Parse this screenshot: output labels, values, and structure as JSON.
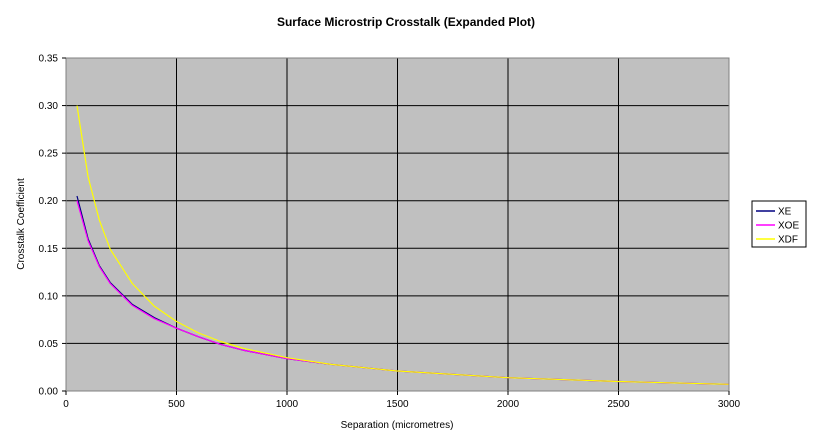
{
  "chart_data": {
    "type": "line",
    "title": "Surface Microstrip Crosstalk (Expanded Plot)",
    "xlabel": "Separation (micrometres)",
    "ylabel": "Crosstalk Coefficient",
    "xlim": [
      0,
      3000
    ],
    "ylim": [
      0,
      0.35
    ],
    "x_ticks": [
      0,
      500,
      1000,
      1500,
      2000,
      2500,
      3000
    ],
    "y_ticks": [
      "0.00",
      "0.05",
      "0.10",
      "0.15",
      "0.20",
      "0.25",
      "0.30",
      "0.35"
    ],
    "grid": true,
    "plot_background": "#c0c0c0",
    "legend_position": "right",
    "series": [
      {
        "name": "XE",
        "color": "#000080",
        "x": [
          50,
          100,
          150,
          200,
          300,
          400,
          500,
          600,
          700,
          800,
          1000,
          1200,
          1500,
          2000,
          2500,
          3000
        ],
        "values": [
          0.205,
          0.16,
          0.132,
          0.114,
          0.091,
          0.077,
          0.066,
          0.057,
          0.049,
          0.043,
          0.034,
          0.028,
          0.021,
          0.014,
          0.01,
          0.007
        ]
      },
      {
        "name": "XOE",
        "color": "#ff00ff",
        "x": [
          50,
          100,
          150,
          200,
          300,
          400,
          500,
          600,
          700,
          800,
          1000,
          1200,
          1500,
          2000,
          2500,
          3000
        ],
        "values": [
          0.2,
          0.158,
          0.131,
          0.113,
          0.09,
          0.076,
          0.066,
          0.057,
          0.049,
          0.043,
          0.034,
          0.028,
          0.021,
          0.014,
          0.01,
          0.007
        ]
      },
      {
        "name": "XDF",
        "color": "#ffff00",
        "x": [
          50,
          100,
          150,
          200,
          300,
          400,
          500,
          600,
          700,
          800,
          1000,
          1200,
          1500,
          2000,
          2500,
          3000
        ],
        "values": [
          0.3,
          0.225,
          0.18,
          0.149,
          0.113,
          0.089,
          0.073,
          0.061,
          0.052,
          0.045,
          0.035,
          0.028,
          0.021,
          0.014,
          0.01,
          0.007
        ]
      }
    ]
  }
}
